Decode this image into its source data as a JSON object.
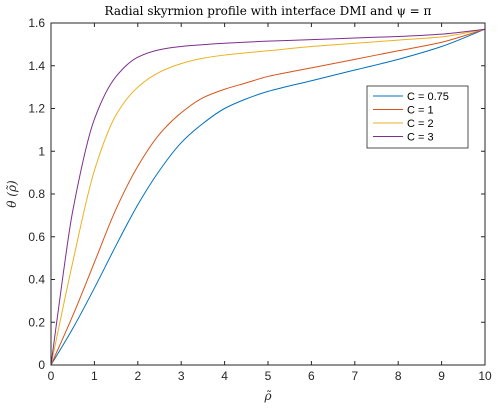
{
  "chart_data": {
    "type": "line",
    "title": "Radial skyrmion profile with interface DMI and ψ = π",
    "xlabel": "ρ̃",
    "ylabel": "θ (ρ̃)",
    "xlim": [
      0,
      10
    ],
    "ylim": [
      0,
      1.6
    ],
    "xticks": [
      0,
      1,
      2,
      3,
      4,
      5,
      6,
      7,
      8,
      9,
      10
    ],
    "yticks": [
      0,
      0.2,
      0.4,
      0.6,
      0.8,
      1,
      1.2,
      1.4,
      1.6
    ],
    "xtick_labels": [
      "0",
      "1",
      "2",
      "3",
      "4",
      "5",
      "6",
      "7",
      "8",
      "9",
      "10"
    ],
    "ytick_labels": [
      "0",
      "0.2",
      "0.4",
      "0.6",
      "0.8",
      "1",
      "1.2",
      "1.4",
      "1.6"
    ],
    "grid": false,
    "legend": "upper-right-inside",
    "series": [
      {
        "name": "C = 0.75",
        "color": "#0072BD",
        "x": [
          0,
          0.5,
          1,
          1.5,
          2,
          2.5,
          3,
          3.5,
          4,
          4.5,
          5,
          6,
          7,
          8,
          9,
          10
        ],
        "y": [
          0,
          0.17,
          0.36,
          0.56,
          0.75,
          0.91,
          1.04,
          1.13,
          1.2,
          1.245,
          1.28,
          1.33,
          1.38,
          1.43,
          1.49,
          1.571
        ]
      },
      {
        "name": "C = 1",
        "color": "#D95319",
        "x": [
          0,
          0.5,
          1,
          1.5,
          2,
          2.5,
          3,
          3.5,
          4,
          4.5,
          5,
          6,
          7,
          8,
          9,
          10
        ],
        "y": [
          0,
          0.23,
          0.48,
          0.73,
          0.93,
          1.08,
          1.18,
          1.25,
          1.29,
          1.32,
          1.35,
          1.39,
          1.43,
          1.47,
          1.51,
          1.571
        ]
      },
      {
        "name": "C = 2",
        "color": "#EDB120",
        "x": [
          0,
          0.5,
          1,
          1.5,
          2,
          2.5,
          3,
          3.5,
          4,
          5,
          6,
          7,
          8,
          9,
          10
        ],
        "y": [
          0,
          0.48,
          0.91,
          1.17,
          1.3,
          1.37,
          1.41,
          1.435,
          1.45,
          1.47,
          1.49,
          1.505,
          1.52,
          1.535,
          1.571
        ]
      },
      {
        "name": "C = 3",
        "color": "#7E2F8E",
        "x": [
          0,
          0.25,
          0.5,
          1,
          1.5,
          2,
          2.5,
          3,
          4,
          5,
          6,
          7,
          8,
          9,
          10
        ],
        "y": [
          0,
          0.38,
          0.72,
          1.15,
          1.35,
          1.44,
          1.475,
          1.49,
          1.505,
          1.515,
          1.522,
          1.53,
          1.537,
          1.548,
          1.571
        ]
      }
    ]
  }
}
